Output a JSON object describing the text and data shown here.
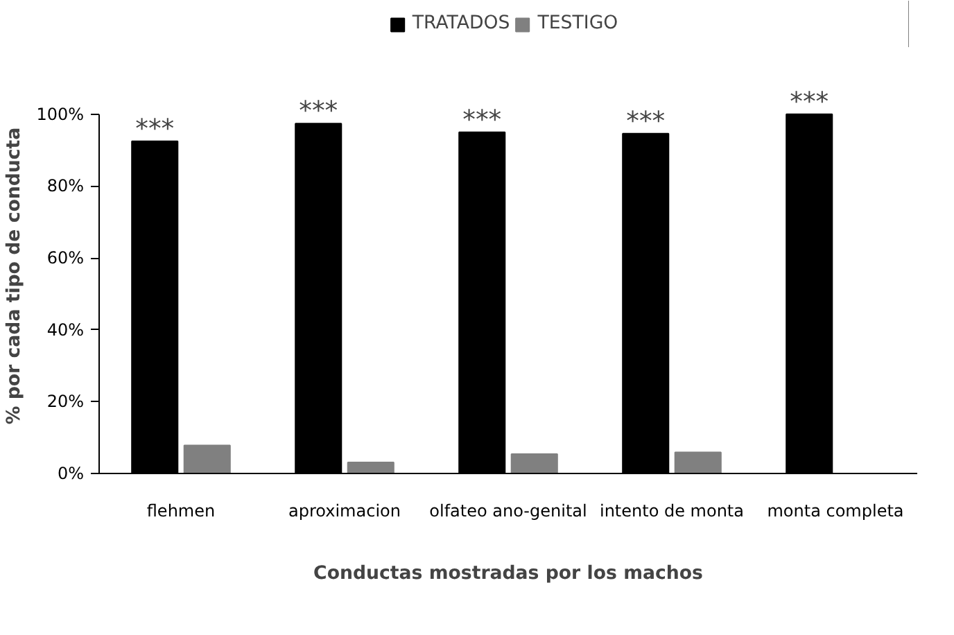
{
  "chart_data": {
    "type": "bar",
    "xlabel": "Conductas mostradas por los machos",
    "ylabel": "% por cada tipo de conducta",
    "categories": [
      "flehmen",
      "aproximacion",
      "olfateo ano-genital",
      "intento de monta",
      "monta completa"
    ],
    "series": [
      {
        "name": "TRATADOS",
        "color": "#000000",
        "values": [
          92.5,
          97.4,
          95.0,
          94.6,
          100
        ]
      },
      {
        "name": "TESTIGO",
        "color": "#808080",
        "values": [
          7.8,
          3.1,
          5.4,
          5.9,
          0
        ]
      }
    ],
    "ylim": [
      0,
      100
    ],
    "yticks": [
      {
        "value": 0,
        "label": "0%"
      },
      {
        "value": 20,
        "label": "20%"
      },
      {
        "value": 40,
        "label": "40%"
      },
      {
        "value": 60,
        "label": "60%"
      },
      {
        "value": 80,
        "label": "80%"
      },
      {
        "value": 100,
        "label": "100%"
      }
    ],
    "annotations": [
      {
        "text": "***",
        "x": "flehmen",
        "y": 92.5
      },
      {
        "text": "***",
        "x": "aproximacion",
        "y": 97.4
      },
      {
        "text": "***",
        "x": "olfateo ano-genital",
        "y": 95.0
      },
      {
        "text": "***",
        "x": "intento de monta",
        "y": 94.6
      },
      {
        "text": "***",
        "x": "monta completa",
        "y": 100
      }
    ],
    "grid": false,
    "legend": "top"
  }
}
